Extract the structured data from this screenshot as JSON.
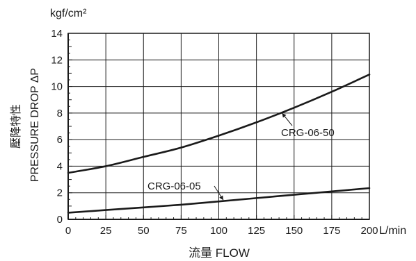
{
  "chart_data": {
    "type": "line",
    "y_unit": "kgf/cm²",
    "x_unit": "L/min",
    "ylabel_cjk": "壓降特性",
    "ylabel": "PRESSURE DROP ΔP",
    "xlabel": "流量 FLOW",
    "xlim": [
      0,
      200
    ],
    "ylim": [
      0,
      14
    ],
    "x_ticks": [
      "0",
      "25",
      "50",
      "75",
      "100",
      "125",
      "150",
      "175",
      "200"
    ],
    "y_ticks": [
      "0",
      "2",
      "4",
      "6",
      "8",
      "10",
      "12",
      "14"
    ],
    "grid": true,
    "series": [
      {
        "name": "CRG-06-50",
        "x": [
          0,
          25,
          50,
          75,
          100,
          125,
          150,
          175,
          200
        ],
        "y": [
          3.5,
          4.0,
          4.7,
          5.4,
          6.3,
          7.3,
          8.4,
          9.6,
          10.9
        ]
      },
      {
        "name": "CRG-06-05",
        "x": [
          0,
          25,
          50,
          75,
          100,
          125,
          150,
          175,
          200
        ],
        "y": [
          0.5,
          0.7,
          0.9,
          1.1,
          1.35,
          1.6,
          1.85,
          2.1,
          2.35
        ]
      }
    ],
    "colors": {
      "line": "#1a1a1a",
      "grid": "#1a1a1a",
      "background": "#ffffff"
    }
  }
}
